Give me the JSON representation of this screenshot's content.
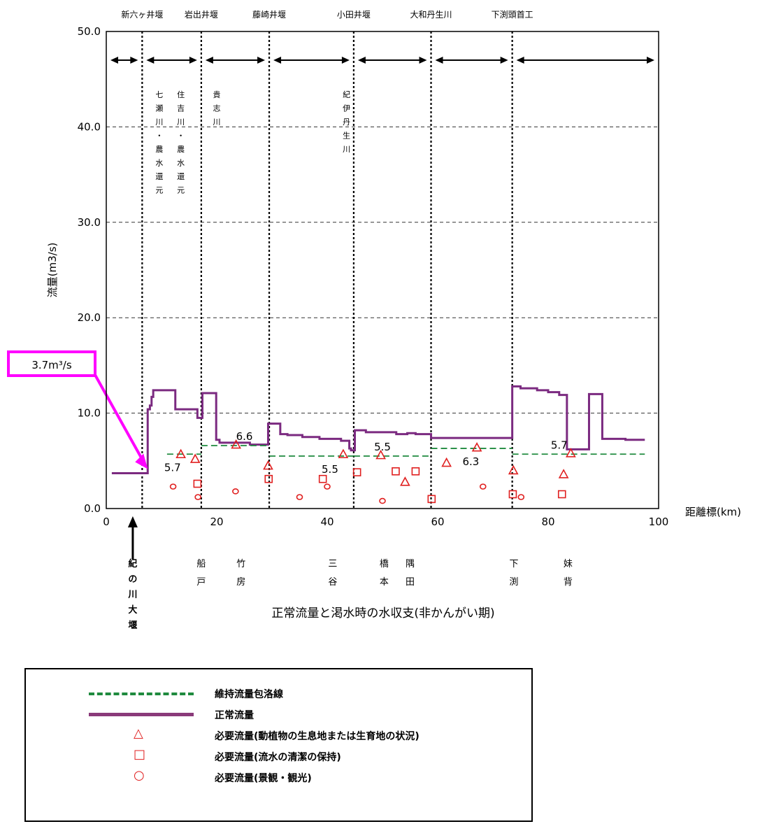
{
  "chart_data": {
    "type": "line",
    "title": "",
    "caption": "正常流量と渇水時の水収支(非かんがい期)",
    "xlabel": "距離標(km)",
    "ylabel": "流量(m3/s)",
    "xlim": [
      0,
      100
    ],
    "ylim": [
      0,
      50
    ],
    "x_ticks": [
      "0",
      "20",
      "40",
      "60",
      "80",
      "100"
    ],
    "y_ticks": [
      "0.0",
      "10.0",
      "20.0",
      "30.0",
      "40.0",
      "50.0"
    ],
    "grid": "horizontal dashed",
    "weirs": [
      {
        "name": "新六ヶ井堰",
        "km": 6.5
      },
      {
        "name": "岩出井堰",
        "km": 17.2
      },
      {
        "name": "藤崎井堰",
        "km": 29.5
      },
      {
        "name": "小田井堰",
        "km": 44.8
      },
      {
        "name": "大和丹生川",
        "km": 58.8
      },
      {
        "name": "下渕頭首工",
        "km": 73.5
      }
    ],
    "tributaries": [
      {
        "text": "七瀬川・農水還元",
        "km": 9.6
      },
      {
        "text": "住吉川・農水還元",
        "km": 13.5
      },
      {
        "text": "貴志川",
        "km": 20.0
      },
      {
        "text": "紀伊丹生川",
        "km": 43.5
      }
    ],
    "bottom_labels": [
      {
        "text": "紀の川大堰",
        "km": 4.8
      },
      {
        "text": "船戸",
        "km": 17.2
      },
      {
        "text": "竹房",
        "km": 24.4
      },
      {
        "text": "三谷",
        "km": 41.0
      },
      {
        "text": "橋本",
        "km": 50.3
      },
      {
        "text": "隅田",
        "km": 55.0
      },
      {
        "text": "下渕",
        "km": 73.8
      },
      {
        "text": "妹背",
        "km": 83.6
      }
    ],
    "callout": {
      "text": "3.7m³/s",
      "x": 5,
      "y": 3.7
    },
    "segment_labels": [
      {
        "text": "5.7",
        "x": 12,
        "y": 5.7
      },
      {
        "text": "6.6",
        "x": 25,
        "y": 6.6
      },
      {
        "text": "5.5",
        "x": 40.5,
        "y": 5.5
      },
      {
        "text": "5.5",
        "x": 50,
        "y": 5.5
      },
      {
        "text": "6.3",
        "x": 66,
        "y": 6.3
      },
      {
        "text": "5.7",
        "x": 82,
        "y": 5.7
      }
    ],
    "series": [
      {
        "name": "正常流量",
        "style": "solid",
        "color": "#7b2a80",
        "points": [
          [
            1,
            3.7
          ],
          [
            7.5,
            3.7
          ],
          [
            7.5,
            10.4
          ],
          [
            7.9,
            10.4
          ],
          [
            7.9,
            10.8
          ],
          [
            8.2,
            10.8
          ],
          [
            8.2,
            11.7
          ],
          [
            8.5,
            11.7
          ],
          [
            8.5,
            12.4
          ],
          [
            12.5,
            12.4
          ],
          [
            12.5,
            10.4
          ],
          [
            16.5,
            10.4
          ],
          [
            16.5,
            9.5
          ],
          [
            17.4,
            9.5
          ],
          [
            17.4,
            12.1
          ],
          [
            19.9,
            12.1
          ],
          [
            19.9,
            7.2
          ],
          [
            20.5,
            7.2
          ],
          [
            20.5,
            6.9
          ],
          [
            26,
            6.9
          ],
          [
            26,
            6.7
          ],
          [
            29.3,
            6.7
          ],
          [
            29.3,
            8.9
          ],
          [
            31.5,
            8.9
          ],
          [
            31.5,
            7.8
          ],
          [
            32.8,
            7.8
          ],
          [
            32.8,
            7.7
          ],
          [
            35.5,
            7.7
          ],
          [
            35.5,
            7.5
          ],
          [
            38.6,
            7.5
          ],
          [
            38.6,
            7.3
          ],
          [
            42.5,
            7.3
          ],
          [
            42.5,
            7.1
          ],
          [
            44,
            7.1
          ],
          [
            44,
            6.3
          ],
          [
            44.3,
            6.3
          ],
          [
            44.3,
            6.1
          ],
          [
            45,
            6.1
          ],
          [
            45,
            8.2
          ],
          [
            47,
            8.2
          ],
          [
            47,
            8.0
          ],
          [
            52.5,
            8.0
          ],
          [
            52.5,
            7.8
          ],
          [
            54.5,
            7.8
          ],
          [
            54.5,
            7.9
          ],
          [
            56,
            7.9
          ],
          [
            56,
            7.8
          ],
          [
            58.8,
            7.8
          ],
          [
            58.8,
            7.4
          ],
          [
            73.5,
            7.4
          ],
          [
            73.5,
            12.8
          ],
          [
            75,
            12.8
          ],
          [
            75,
            12.6
          ],
          [
            78,
            12.6
          ],
          [
            78,
            12.4
          ],
          [
            80,
            12.4
          ],
          [
            80,
            12.2
          ],
          [
            82,
            12.2
          ],
          [
            82,
            11.9
          ],
          [
            83.4,
            11.9
          ],
          [
            83.4,
            6.2
          ],
          [
            87.4,
            6.2
          ],
          [
            87.4,
            12.0
          ],
          [
            89.8,
            12.0
          ],
          [
            89.8,
            7.3
          ],
          [
            94,
            7.3
          ],
          [
            94,
            7.2
          ],
          [
            97.5,
            7.2
          ]
        ]
      },
      {
        "name": "維持流量包洛線",
        "style": "dashed",
        "color": "#1f8a3e",
        "segments": [
          [
            11,
            17.2,
            5.7
          ],
          [
            17.2,
            29.5,
            6.6
          ],
          [
            29.5,
            44.8,
            5.5
          ],
          [
            44.8,
            58.8,
            5.5
          ],
          [
            58.8,
            73.5,
            6.3
          ],
          [
            73.5,
            97.5,
            5.7
          ]
        ]
      },
      {
        "name": "必要流量(動植物の生息地または生育地の状況)",
        "marker": "triangle",
        "color": "#e02020",
        "points": [
          [
            13.5,
            5.7
          ],
          [
            16.1,
            5.2
          ],
          [
            23.5,
            6.7
          ],
          [
            29.3,
            4.5
          ],
          [
            42.9,
            5.7
          ],
          [
            49.7,
            5.6
          ],
          [
            54.1,
            2.8
          ],
          [
            61.6,
            4.8
          ],
          [
            67.1,
            6.4
          ],
          [
            73.7,
            4.0
          ],
          [
            82.8,
            3.6
          ],
          [
            84.1,
            5.8
          ]
        ]
      },
      {
        "name": "必要流量(流水の清潔の保持)",
        "marker": "square",
        "color": "#e02020",
        "points": [
          [
            16.5,
            2.6
          ],
          [
            29.4,
            3.1
          ],
          [
            39.2,
            3.1
          ],
          [
            45.4,
            3.8
          ],
          [
            52.4,
            3.9
          ],
          [
            56,
            3.9
          ],
          [
            58.9,
            1.0
          ],
          [
            73.6,
            1.5
          ],
          [
            82.5,
            1.5
          ]
        ]
      },
      {
        "name": "必要流量(景観・観光)",
        "marker": "circle",
        "color": "#e02020",
        "points": [
          [
            12.1,
            2.3
          ],
          [
            16.6,
            1.2
          ],
          [
            23.4,
            1.8
          ],
          [
            35,
            1.2
          ],
          [
            40,
            2.3
          ],
          [
            50,
            0.8
          ],
          [
            68.2,
            2.3
          ],
          [
            75.1,
            1.2
          ]
        ]
      }
    ]
  },
  "legend": {
    "items": [
      {
        "symbol": "dashed-green-line",
        "label": "維持流量包洛線"
      },
      {
        "symbol": "solid-purple-line",
        "label": "正常流量"
      },
      {
        "symbol": "triangle-icon",
        "glyph": "△",
        "label": "必要流量(動植物の生息地または生育地の状況)"
      },
      {
        "symbol": "square-icon",
        "glyph": "□",
        "label": "必要流量(流水の清潔の保持)"
      },
      {
        "symbol": "circle-icon",
        "glyph": "○",
        "label": "必要流量(景観・観光)"
      }
    ]
  }
}
